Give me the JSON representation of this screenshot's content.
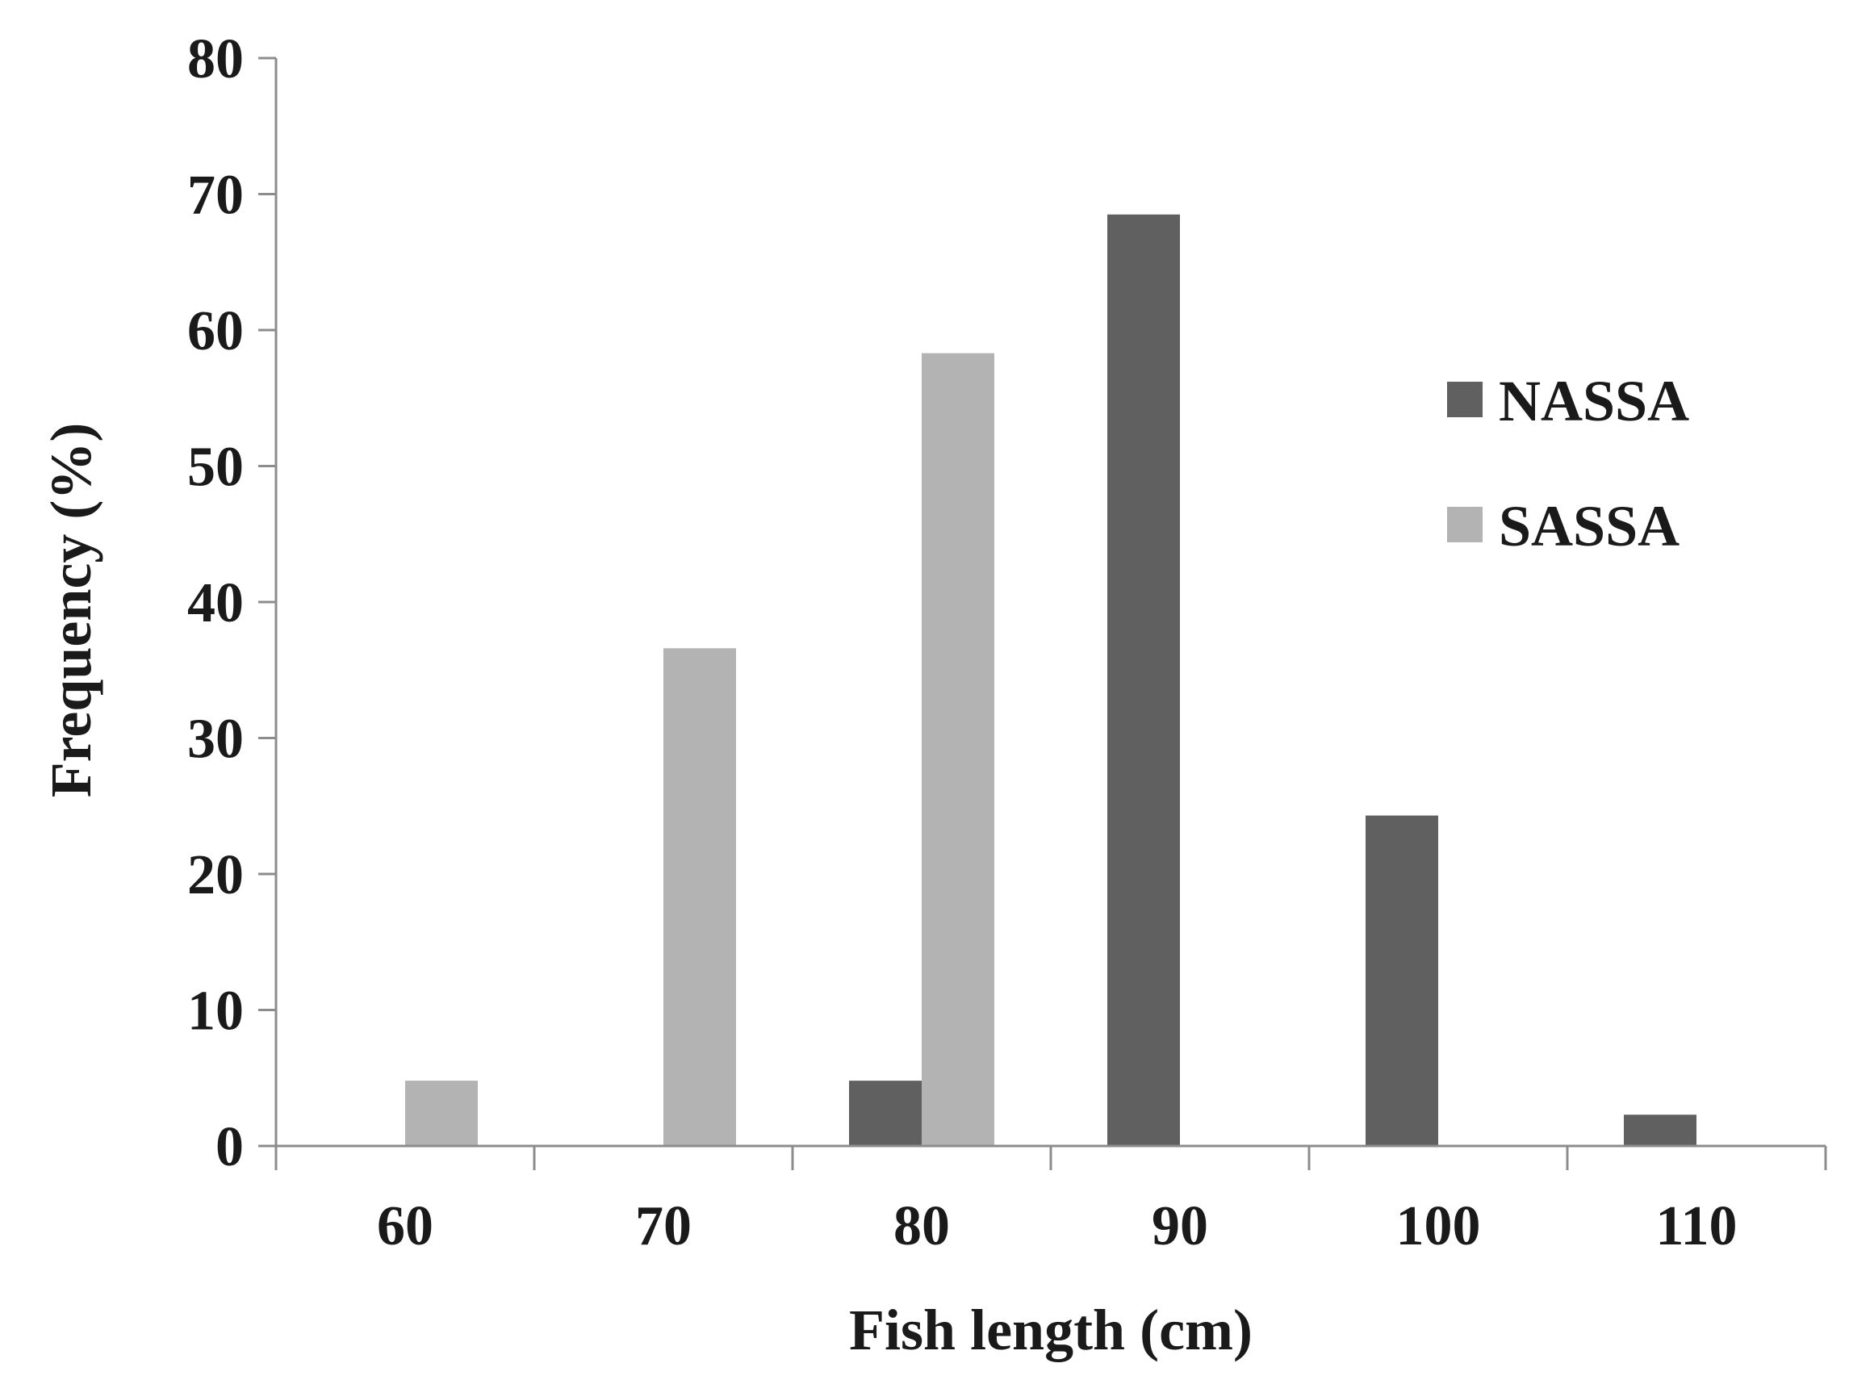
{
  "chart_data": {
    "type": "bar",
    "categories": [
      "60",
      "70",
      "80",
      "90",
      "100",
      "110"
    ],
    "series": [
      {
        "name": "NASSA",
        "color": "#606060",
        "values": [
          0,
          0,
          4.8,
          68.5,
          24.3,
          2.3
        ]
      },
      {
        "name": "SASSA",
        "color": "#b3b3b3",
        "values": [
          4.8,
          36.6,
          58.3,
          0,
          0,
          0
        ]
      }
    ],
    "title": "",
    "xlabel": "Fish length (cm)",
    "ylabel": "Frequency  (%)",
    "ylim": [
      0,
      80
    ],
    "yticks": [
      0,
      10,
      20,
      30,
      40,
      50,
      60,
      70,
      80
    ],
    "grid": false,
    "legend_position": "right"
  }
}
